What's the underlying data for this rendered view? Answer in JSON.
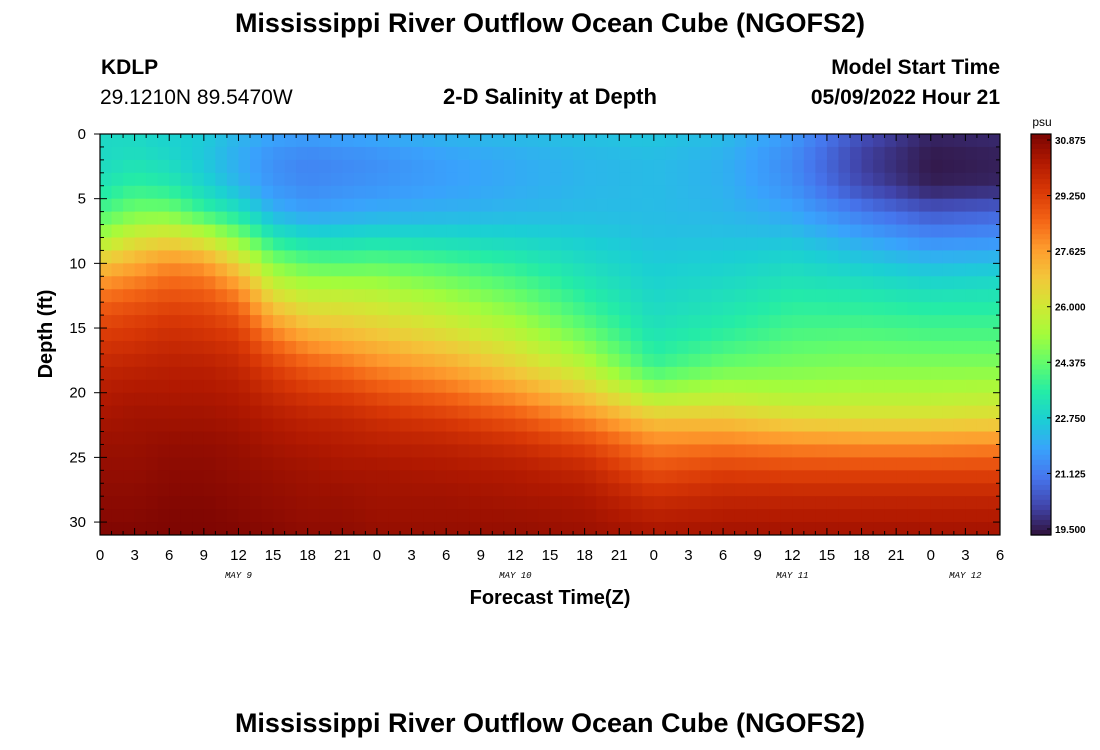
{
  "header": {
    "title": "Mississippi River Outflow Ocean Cube (NGOFS2)",
    "station": "KDLP",
    "coords": "29.1210N  89.5470W",
    "subtitle": "2-D Salinity at Depth",
    "model_start_label": "Model Start Time",
    "model_start_value": "05/09/2022 Hour 21"
  },
  "footer": {
    "title": "Mississippi River Outflow Ocean Cube (NGOFS2)"
  },
  "chart_data": {
    "type": "heatmap",
    "title": "2-D Salinity at Depth",
    "xlabel": "Forecast Time(Z)",
    "ylabel": "Depth (ft)",
    "x_tick_labels": [
      "0",
      "3",
      "6",
      "9",
      "12",
      "15",
      "18",
      "21",
      "0",
      "3",
      "6",
      "9",
      "12",
      "15",
      "18",
      "21",
      "0",
      "3",
      "6",
      "9",
      "12",
      "15",
      "18",
      "21",
      "0",
      "3",
      "6"
    ],
    "day_labels": [
      {
        "label": "MAY 9",
        "hour_index": 12
      },
      {
        "label": "MAY 10",
        "hour_index": 36
      },
      {
        "label": "MAY 11",
        "hour_index": 60
      },
      {
        "label": "MAY 12",
        "hour_index": 75
      }
    ],
    "x_range_hours": [
      0,
      78
    ],
    "y_ticks": [
      0,
      5,
      10,
      15,
      20,
      25,
      30
    ],
    "ylim": [
      0,
      31
    ],
    "y_inverted": true,
    "colorbar": {
      "unit": "psu",
      "min": 19.5,
      "max": 30.875,
      "tick_labels": [
        "30.875",
        "29.250",
        "27.625",
        "26.000",
        "24.375",
        "22.750",
        "21.125",
        "19.500"
      ],
      "colors": [
        "#30123b",
        "#4145ab",
        "#4675ed",
        "#39a2fc",
        "#1bcfd4",
        "#24eca6",
        "#61fc6c",
        "#a4fc3b",
        "#d1e834",
        "#f3c63a",
        "#fe9b2d",
        "#f36315",
        "#d93806",
        "#b11901",
        "#7a0402"
      ]
    },
    "profile_hours": [
      0,
      3,
      6,
      9,
      12,
      15,
      18,
      21,
      24,
      30,
      36,
      42,
      48,
      54,
      60,
      66,
      72,
      78
    ],
    "profile_depths": [
      0,
      2,
      4,
      6,
      8,
      10,
      12,
      14,
      16,
      18,
      20,
      22,
      24,
      26,
      28,
      30,
      31
    ],
    "salinity": [
      [
        23.0,
        23.0,
        23.3,
        24.0,
        25.2,
        26.8,
        28.0,
        28.8,
        29.3,
        29.7,
        30.0,
        30.2,
        30.4,
        30.5,
        30.6,
        30.7,
        30.8
      ],
      [
        23.0,
        23.2,
        23.7,
        24.6,
        26.0,
        27.3,
        28.3,
        29.0,
        29.4,
        29.8,
        30.1,
        30.3,
        30.4,
        30.5,
        30.6,
        30.7,
        30.8
      ],
      [
        22.8,
        23.0,
        23.5,
        24.6,
        26.3,
        27.8,
        28.6,
        29.2,
        29.6,
        29.9,
        30.1,
        30.3,
        30.5,
        30.6,
        30.7,
        30.8,
        30.8
      ],
      [
        22.7,
        22.6,
        22.9,
        23.8,
        25.8,
        27.6,
        28.5,
        29.1,
        29.5,
        29.9,
        30.1,
        30.3,
        30.5,
        30.6,
        30.7,
        30.8,
        30.8
      ],
      [
        22.3,
        22.1,
        22.3,
        23.2,
        24.8,
        26.5,
        27.8,
        28.7,
        29.3,
        29.7,
        30.0,
        30.2,
        30.4,
        30.5,
        30.6,
        30.7,
        30.8
      ],
      [
        22.0,
        21.6,
        21.7,
        22.2,
        23.4,
        24.8,
        26.0,
        27.2,
        28.3,
        29.1,
        29.6,
        30.0,
        30.2,
        30.4,
        30.5,
        30.6,
        30.7
      ],
      [
        21.9,
        21.4,
        21.5,
        21.9,
        23.0,
        24.3,
        25.5,
        26.5,
        27.6,
        28.6,
        29.3,
        29.8,
        30.1,
        30.3,
        30.4,
        30.5,
        30.6
      ],
      [
        22.0,
        21.5,
        21.6,
        22.0,
        23.0,
        24.2,
        25.5,
        26.4,
        27.3,
        28.3,
        29.1,
        29.7,
        30.0,
        30.2,
        30.4,
        30.5,
        30.6
      ],
      [
        22.1,
        21.6,
        21.7,
        22.1,
        23.1,
        24.3,
        25.4,
        26.2,
        27.0,
        27.9,
        28.8,
        29.5,
        29.9,
        30.2,
        30.3,
        30.4,
        30.5
      ],
      [
        22.3,
        21.9,
        21.9,
        22.2,
        23.0,
        24.0,
        24.9,
        25.7,
        26.5,
        27.4,
        28.3,
        29.2,
        29.8,
        30.1,
        30.3,
        30.4,
        30.5
      ],
      [
        22.4,
        22.1,
        22.1,
        22.3,
        22.9,
        23.6,
        24.3,
        25.0,
        25.8,
        26.6,
        27.6,
        28.7,
        29.5,
        30.0,
        30.2,
        30.4,
        30.5
      ],
      [
        22.5,
        22.3,
        22.3,
        22.4,
        22.7,
        23.1,
        23.5,
        24.0,
        24.7,
        25.6,
        26.7,
        27.9,
        29.0,
        29.7,
        30.1,
        30.3,
        30.4
      ],
      [
        22.6,
        22.4,
        22.4,
        22.4,
        22.5,
        22.7,
        22.9,
        23.1,
        23.4,
        23.9,
        25.2,
        26.8,
        28.0,
        28.8,
        29.5,
        30.0,
        30.2
      ],
      [
        22.4,
        22.2,
        22.2,
        22.3,
        22.5,
        22.8,
        23.1,
        23.4,
        23.8,
        24.5,
        25.5,
        26.8,
        28.1,
        29.1,
        29.7,
        30.1,
        30.3
      ],
      [
        21.8,
        21.5,
        21.6,
        22.0,
        22.5,
        23.0,
        23.4,
        23.8,
        24.2,
        24.7,
        25.3,
        26.4,
        27.9,
        29.0,
        29.7,
        30.1,
        30.3
      ],
      [
        20.5,
        20.2,
        20.4,
        21.2,
        22.0,
        22.7,
        23.3,
        23.8,
        24.3,
        24.8,
        25.4,
        26.3,
        27.8,
        29.0,
        29.7,
        30.1,
        30.3
      ],
      [
        19.8,
        19.6,
        19.7,
        20.6,
        21.5,
        22.4,
        23.1,
        23.7,
        24.2,
        24.8,
        25.4,
        26.3,
        27.8,
        29.0,
        29.7,
        30.1,
        30.3
      ],
      [
        19.9,
        19.7,
        19.8,
        20.8,
        21.6,
        22.5,
        23.2,
        23.7,
        24.2,
        24.8,
        25.5,
        26.4,
        27.9,
        29.0,
        29.7,
        30.1,
        30.3
      ]
    ]
  }
}
